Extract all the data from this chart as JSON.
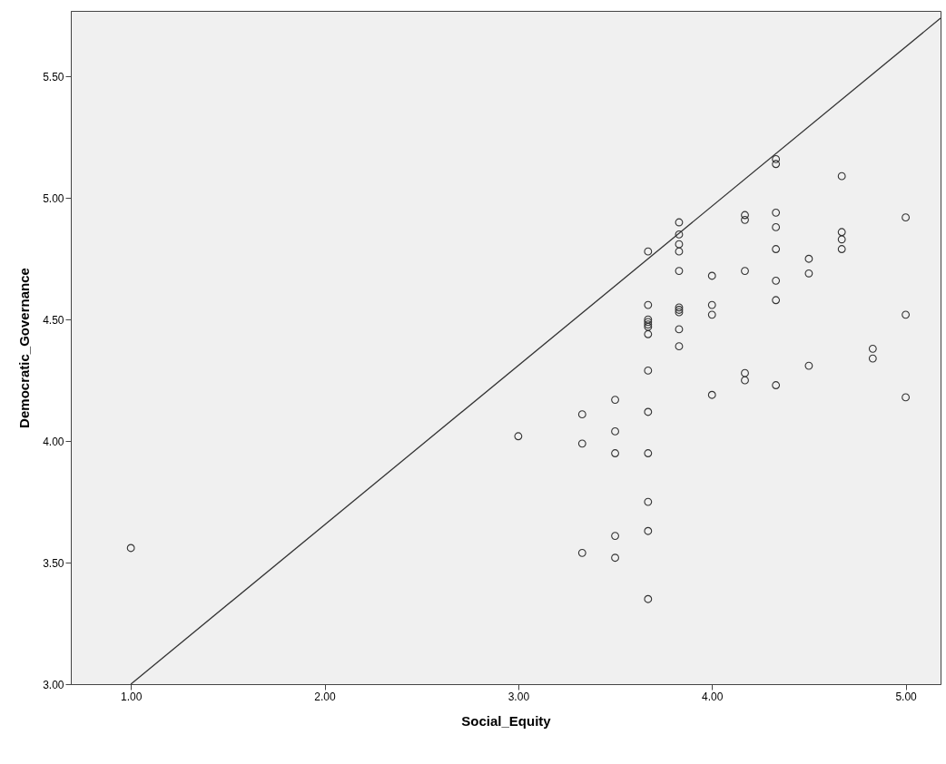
{
  "chart_data": {
    "type": "scatter",
    "xlabel": "Social_Equity",
    "ylabel": "Democratic_Governance",
    "xlim": [
      0.69,
      5.18
    ],
    "ylim": [
      3.0,
      5.77
    ],
    "xticks": [
      {
        "value": 1,
        "label": "1.00"
      },
      {
        "value": 2,
        "label": "2.00"
      },
      {
        "value": 3,
        "label": "3.00"
      },
      {
        "value": 4,
        "label": "4.00"
      },
      {
        "value": 5,
        "label": "5.00"
      }
    ],
    "yticks": [
      {
        "value": 3,
        "label": "3.00"
      },
      {
        "value": 3.5,
        "label": "3.50"
      },
      {
        "value": 4,
        "label": "4.00"
      },
      {
        "value": 4.5,
        "label": "4.50"
      },
      {
        "value": 5,
        "label": "5.00"
      },
      {
        "value": 5.5,
        "label": "5.50"
      }
    ],
    "grid": false,
    "series": [
      {
        "marker": "circle",
        "color": "#333333",
        "x": [
          1.0,
          3.0,
          3.33,
          3.33,
          3.33,
          3.5,
          3.5,
          3.5,
          3.5,
          3.5,
          3.67,
          3.67,
          3.67,
          3.67,
          3.67,
          3.67,
          3.67,
          3.67,
          3.67,
          3.67,
          3.67,
          3.67,
          3.67,
          3.83,
          3.83,
          3.83,
          3.83,
          3.83,
          3.83,
          3.83,
          3.83,
          3.83,
          3.83,
          4.0,
          4.0,
          4.0,
          4.0,
          4.17,
          4.17,
          4.17,
          4.17,
          4.17,
          4.33,
          4.33,
          4.33,
          4.33,
          4.33,
          4.33,
          4.33,
          4.33,
          4.5,
          4.5,
          4.5,
          4.67,
          4.67,
          4.67,
          4.67,
          4.83,
          4.83,
          5.0,
          5.0,
          5.0
        ],
        "values": [
          3.56,
          4.02,
          4.11,
          3.99,
          3.54,
          4.17,
          4.04,
          3.95,
          3.61,
          3.52,
          4.78,
          4.56,
          4.5,
          4.49,
          4.47,
          4.44,
          4.29,
          4.12,
          3.95,
          3.75,
          3.63,
          3.35,
          4.48,
          4.9,
          4.85,
          4.81,
          4.78,
          4.7,
          4.55,
          4.54,
          4.53,
          4.46,
          4.39,
          4.68,
          4.56,
          4.52,
          4.19,
          4.93,
          4.91,
          4.7,
          4.28,
          4.25,
          5.16,
          5.14,
          4.94,
          4.88,
          4.79,
          4.66,
          4.58,
          4.23,
          4.75,
          4.69,
          4.31,
          5.09,
          4.86,
          4.83,
          4.79,
          4.38,
          4.34,
          4.92,
          4.52,
          4.18
        ]
      },
      {
        "type": "line",
        "color": "#333333",
        "x": [
          1.0,
          5.18
        ],
        "values": [
          3.0,
          5.74
        ]
      }
    ]
  }
}
